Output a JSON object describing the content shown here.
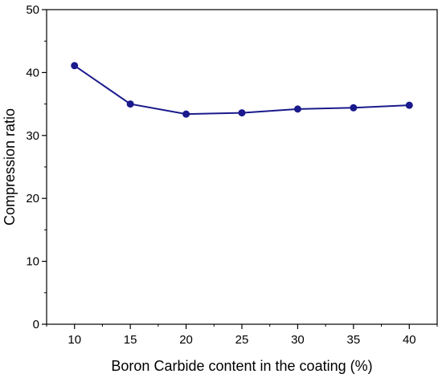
{
  "chart_data": {
    "type": "line",
    "title": "",
    "xlabel": "Boron Carbide content in the coating (%)",
    "ylabel": "Compression ratio",
    "xlim": [
      7.5,
      42.5
    ],
    "ylim": [
      0,
      50
    ],
    "x_ticks": [
      10,
      15,
      20,
      25,
      30,
      35,
      40
    ],
    "y_ticks": [
      0,
      10,
      20,
      30,
      40,
      50
    ],
    "grid": false,
    "series": [
      {
        "color": "#1a1a8c",
        "x": [
          10,
          15,
          20,
          25,
          30,
          35,
          40
        ],
        "y": [
          41.1,
          35.0,
          33.4,
          33.6,
          34.2,
          34.4,
          34.8
        ]
      }
    ]
  }
}
